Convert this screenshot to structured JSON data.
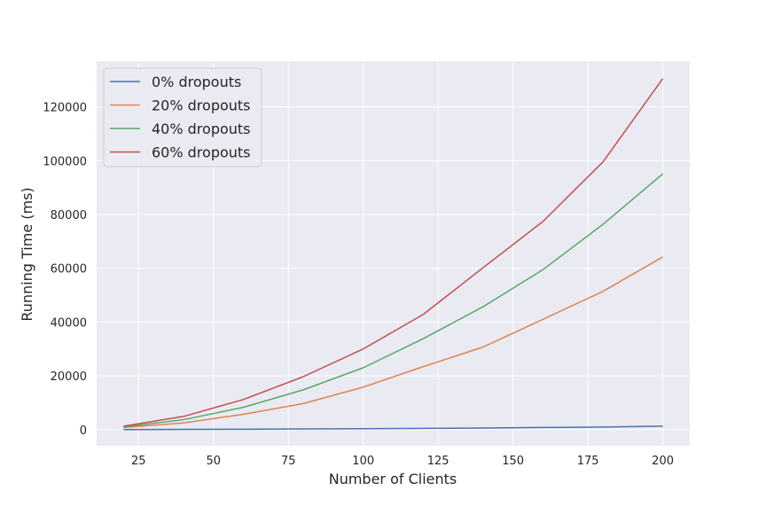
{
  "chart_data": {
    "type": "line",
    "title": "",
    "xlabel": "Number of Clients",
    "ylabel": "Running Time (ms)",
    "xlim": [
      11,
      209
    ],
    "ylim": [
      -6000,
      137000
    ],
    "grid": true,
    "legend_position": "top-left",
    "x": [
      20,
      40,
      60,
      80,
      100,
      120,
      140,
      160,
      180,
      200
    ],
    "x_ticks": [
      25,
      50,
      75,
      100,
      125,
      150,
      175,
      200
    ],
    "y_ticks": [
      0,
      20000,
      40000,
      60000,
      80000,
      100000,
      120000
    ],
    "series": [
      {
        "name": "0% dropouts",
        "color": "#4c72b0",
        "values": [
          30,
          80,
          150,
          250,
          350,
          450,
          600,
          800,
          950,
          1300
        ]
      },
      {
        "name": "20% dropouts",
        "color": "#dd8452",
        "values": [
          800,
          2500,
          5700,
          9700,
          15800,
          23400,
          30700,
          41000,
          51400,
          64200
        ]
      },
      {
        "name": "40% dropouts",
        "color": "#55a868",
        "values": [
          1000,
          3700,
          8300,
          14800,
          23000,
          33800,
          45700,
          59500,
          76300,
          95100
        ]
      },
      {
        "name": "60% dropouts",
        "color": "#c44e52",
        "values": [
          1300,
          4900,
          11200,
          19700,
          30000,
          42800,
          60200,
          77400,
          99500,
          130500
        ]
      }
    ]
  }
}
